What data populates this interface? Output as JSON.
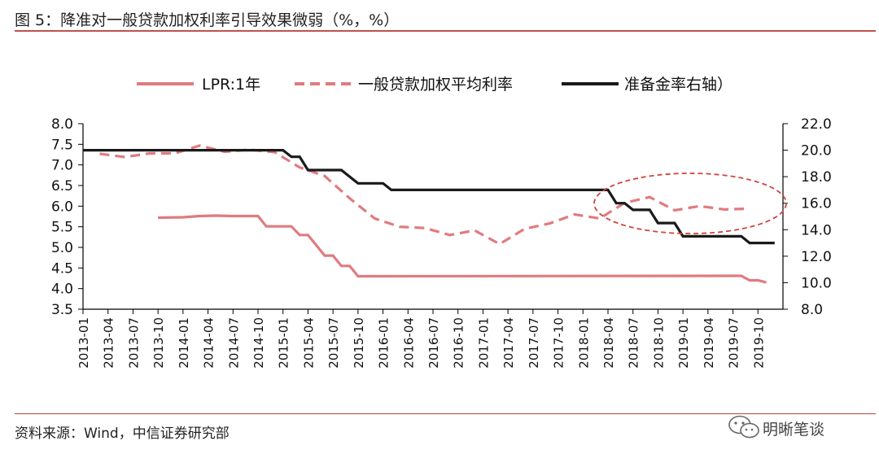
{
  "header": {
    "title": "图 5：降准对一般贷款加权利率引导效果微弱（%，%）"
  },
  "footer": {
    "source": "资料来源：Wind，中信证券研究部",
    "watermark": "明晰笔谈"
  },
  "colors": {
    "lpr": "#e07b80",
    "loan_rate": "#e07b80",
    "rrr": "#1a1a1a",
    "highlight": "#d0453f",
    "rule": "#c0504d"
  },
  "chart_data": {
    "type": "line",
    "title": "",
    "legend": [
      "LPR:1年",
      "一般贷款加权平均利率",
      "准备金率右轴）"
    ],
    "legend_position": "top",
    "x_ticks": [
      "2013-01",
      "2013-04",
      "2013-07",
      "2013-10",
      "2014-01",
      "2014-04",
      "2014-07",
      "2014-10",
      "2015-01",
      "2015-04",
      "2015-07",
      "2015-10",
      "2016-01",
      "2016-04",
      "2016-07",
      "2016-10",
      "2017-01",
      "2017-04",
      "2017-07",
      "2017-10",
      "2018-01",
      "2018-04",
      "2018-07",
      "2018-10",
      "2019-01",
      "2019-04",
      "2019-07",
      "2019-10"
    ],
    "y_left": {
      "min": 3.5,
      "max": 8.0,
      "ticks": [
        "3.5",
        "4.0",
        "4.5",
        "5.0",
        "5.5",
        "6.0",
        "6.5",
        "7.0",
        "7.5",
        "8.0"
      ]
    },
    "y_right": {
      "min": 8.0,
      "max": 22.0,
      "ticks": [
        "8.0",
        "10.0",
        "12.0",
        "14.0",
        "16.0",
        "18.0",
        "20.0",
        "22.0"
      ]
    },
    "series": [
      {
        "name": "LPR:1年",
        "axis": "left",
        "style": "solid",
        "points": [
          [
            "2013-10",
            5.72
          ],
          [
            "2014-01",
            5.73
          ],
          [
            "2014-03",
            5.76
          ],
          [
            "2014-05",
            5.77
          ],
          [
            "2014-07",
            5.76
          ],
          [
            "2014-10",
            5.76
          ],
          [
            "2014-11",
            5.51
          ],
          [
            "2015-02",
            5.51
          ],
          [
            "2015-03",
            5.3
          ],
          [
            "2015-04",
            5.3
          ],
          [
            "2015-05",
            5.05
          ],
          [
            "2015-06",
            4.8
          ],
          [
            "2015-07",
            4.8
          ],
          [
            "2015-08",
            4.55
          ],
          [
            "2015-09",
            4.55
          ],
          [
            "2015-10",
            4.3
          ],
          [
            "2019-08",
            4.31
          ],
          [
            "2019-09",
            4.2
          ],
          [
            "2019-10",
            4.2
          ],
          [
            "2019-11",
            4.15
          ]
        ]
      },
      {
        "name": "一般贷款加权平均利率",
        "axis": "left",
        "style": "dashed",
        "points": [
          [
            "2013-03",
            7.27
          ],
          [
            "2013-06",
            7.19
          ],
          [
            "2013-09",
            7.28
          ],
          [
            "2013-12",
            7.28
          ],
          [
            "2014-03",
            7.47
          ],
          [
            "2014-06",
            7.32
          ],
          [
            "2014-09",
            7.37
          ],
          [
            "2014-12",
            7.31
          ],
          [
            "2015-03",
            6.94
          ],
          [
            "2015-06",
            6.73
          ],
          [
            "2015-09",
            6.19
          ],
          [
            "2015-12",
            5.7
          ],
          [
            "2016-03",
            5.5
          ],
          [
            "2016-06",
            5.47
          ],
          [
            "2016-09",
            5.3
          ],
          [
            "2016-12",
            5.41
          ],
          [
            "2017-03",
            5.08
          ],
          [
            "2017-06",
            5.45
          ],
          [
            "2017-09",
            5.58
          ],
          [
            "2017-12",
            5.8
          ],
          [
            "2018-03",
            5.7
          ],
          [
            "2018-06",
            6.08
          ],
          [
            "2018-09",
            6.22
          ],
          [
            "2018-12",
            5.9
          ],
          [
            "2019-03",
            6.0
          ],
          [
            "2019-06",
            5.92
          ],
          [
            "2019-09",
            5.94
          ]
        ]
      },
      {
        "name": "准备金率右轴）",
        "axis": "right",
        "style": "solid",
        "points": [
          [
            "2013-01",
            20.0
          ],
          [
            "2015-01",
            20.0
          ],
          [
            "2015-02",
            19.5
          ],
          [
            "2015-03",
            19.5
          ],
          [
            "2015-04",
            18.5
          ],
          [
            "2015-08",
            18.5
          ],
          [
            "2015-09",
            18.0
          ],
          [
            "2015-10",
            17.5
          ],
          [
            "2016-01",
            17.5
          ],
          [
            "2016-02",
            17.0
          ],
          [
            "2018-04",
            17.0
          ],
          [
            "2018-05",
            16.0
          ],
          [
            "2018-06",
            16.0
          ],
          [
            "2018-07",
            15.5
          ],
          [
            "2018-09",
            15.5
          ],
          [
            "2018-10",
            14.5
          ],
          [
            "2018-12",
            14.5
          ],
          [
            "2019-01",
            13.5
          ],
          [
            "2019-08",
            13.5
          ],
          [
            "2019-09",
            13.0
          ],
          [
            "2019-12",
            13.0
          ]
        ]
      }
    ],
    "annotation": "highlight ellipse around 2018-04 to 2019-12"
  }
}
